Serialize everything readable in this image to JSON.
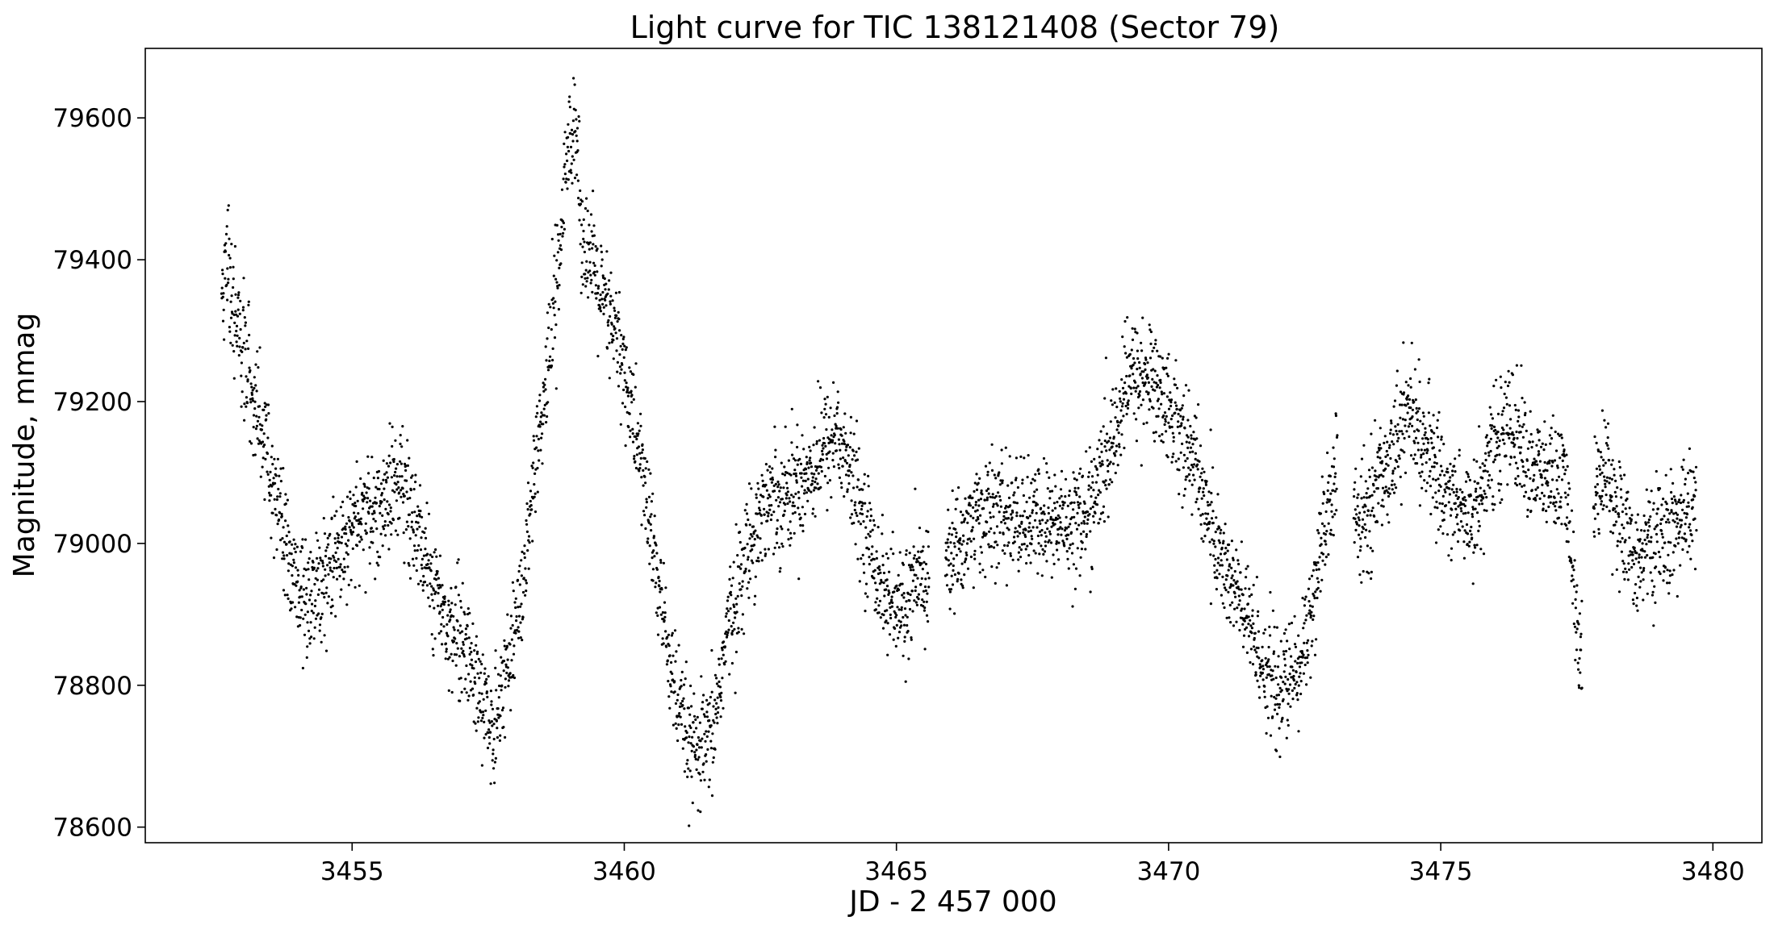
{
  "chart_data": {
    "type": "scatter",
    "title": "Light curve for TIC 138121408 (Sector 79)",
    "xlabel": "JD - 2 457 000",
    "ylabel": "Magnitude, mmag",
    "xlim": [
      3451.2,
      3480.9
    ],
    "ylim": [
      78578,
      79698
    ],
    "x_ticks": [
      3455,
      3460,
      3465,
      3470,
      3475,
      3480
    ],
    "y_ticks": [
      78600,
      78800,
      79000,
      79200,
      79400,
      79600
    ],
    "grid": false,
    "marker_color": "#000000",
    "series": [
      {
        "x_range": [
          3452.6,
          3479.7
        ],
        "scatter_spread_mmag": 40,
        "gaps": [
          [
            3465.6,
            3465.9
          ],
          [
            3473.1,
            3473.4
          ],
          [
            3477.6,
            3477.8
          ]
        ],
        "trend": [
          [
            3452.6,
            79330
          ],
          [
            3452.7,
            79410
          ],
          [
            3452.8,
            79340
          ],
          [
            3453.0,
            79270
          ],
          [
            3453.3,
            79180
          ],
          [
            3453.6,
            79060
          ],
          [
            3453.9,
            78950
          ],
          [
            3454.2,
            78920
          ],
          [
            3454.5,
            78960
          ],
          [
            3455.0,
            79020
          ],
          [
            3455.5,
            79050
          ],
          [
            3455.9,
            79090
          ],
          [
            3456.3,
            78990
          ],
          [
            3456.7,
            78900
          ],
          [
            3457.1,
            78850
          ],
          [
            3457.4,
            78780
          ],
          [
            3457.6,
            78740
          ],
          [
            3457.9,
            78840
          ],
          [
            3458.2,
            78980
          ],
          [
            3458.5,
            79180
          ],
          [
            3458.8,
            79400
          ],
          [
            3459.0,
            79580
          ],
          [
            3459.1,
            79610
          ],
          [
            3459.2,
            79450
          ],
          [
            3459.6,
            79340
          ],
          [
            3459.9,
            79280
          ],
          [
            3460.3,
            79120
          ],
          [
            3460.7,
            78900
          ],
          [
            3461.0,
            78760
          ],
          [
            3461.3,
            78700
          ],
          [
            3461.6,
            78720
          ],
          [
            3461.9,
            78880
          ],
          [
            3462.3,
            79000
          ],
          [
            3462.6,
            79060
          ],
          [
            3463.0,
            79070
          ],
          [
            3463.4,
            79100
          ],
          [
            3463.9,
            79160
          ],
          [
            3464.3,
            79060
          ],
          [
            3464.7,
            78950
          ],
          [
            3465.0,
            78900
          ],
          [
            3465.5,
            78950
          ],
          [
            3466.0,
            78980
          ],
          [
            3466.5,
            79040
          ],
          [
            3467.0,
            79040
          ],
          [
            3467.5,
            79030
          ],
          [
            3468.0,
            79030
          ],
          [
            3468.5,
            79040
          ],
          [
            3468.9,
            79120
          ],
          [
            3469.3,
            79240
          ],
          [
            3469.7,
            79230
          ],
          [
            3470.1,
            79180
          ],
          [
            3470.5,
            79110
          ],
          [
            3470.9,
            78990
          ],
          [
            3471.3,
            78920
          ],
          [
            3471.7,
            78840
          ],
          [
            3472.0,
            78790
          ],
          [
            3472.4,
            78820
          ],
          [
            3472.8,
            78980
          ],
          [
            3473.1,
            79120
          ],
          [
            3473.5,
            79020
          ],
          [
            3474.0,
            79110
          ],
          [
            3474.4,
            79190
          ],
          [
            3474.8,
            79120
          ],
          [
            3475.2,
            79060
          ],
          [
            3475.6,
            79040
          ],
          [
            3476.0,
            79140
          ],
          [
            3476.3,
            79170
          ],
          [
            3476.7,
            79100
          ],
          [
            3477.1,
            79090
          ],
          [
            3477.3,
            79080
          ],
          [
            3477.5,
            78880
          ],
          [
            3477.6,
            78830
          ],
          [
            3477.8,
            79050
          ],
          [
            3478.0,
            79120
          ],
          [
            3478.2,
            79060
          ],
          [
            3478.5,
            78980
          ],
          [
            3478.9,
            79000
          ],
          [
            3479.3,
            79020
          ],
          [
            3479.7,
            79060
          ]
        ]
      }
    ]
  }
}
